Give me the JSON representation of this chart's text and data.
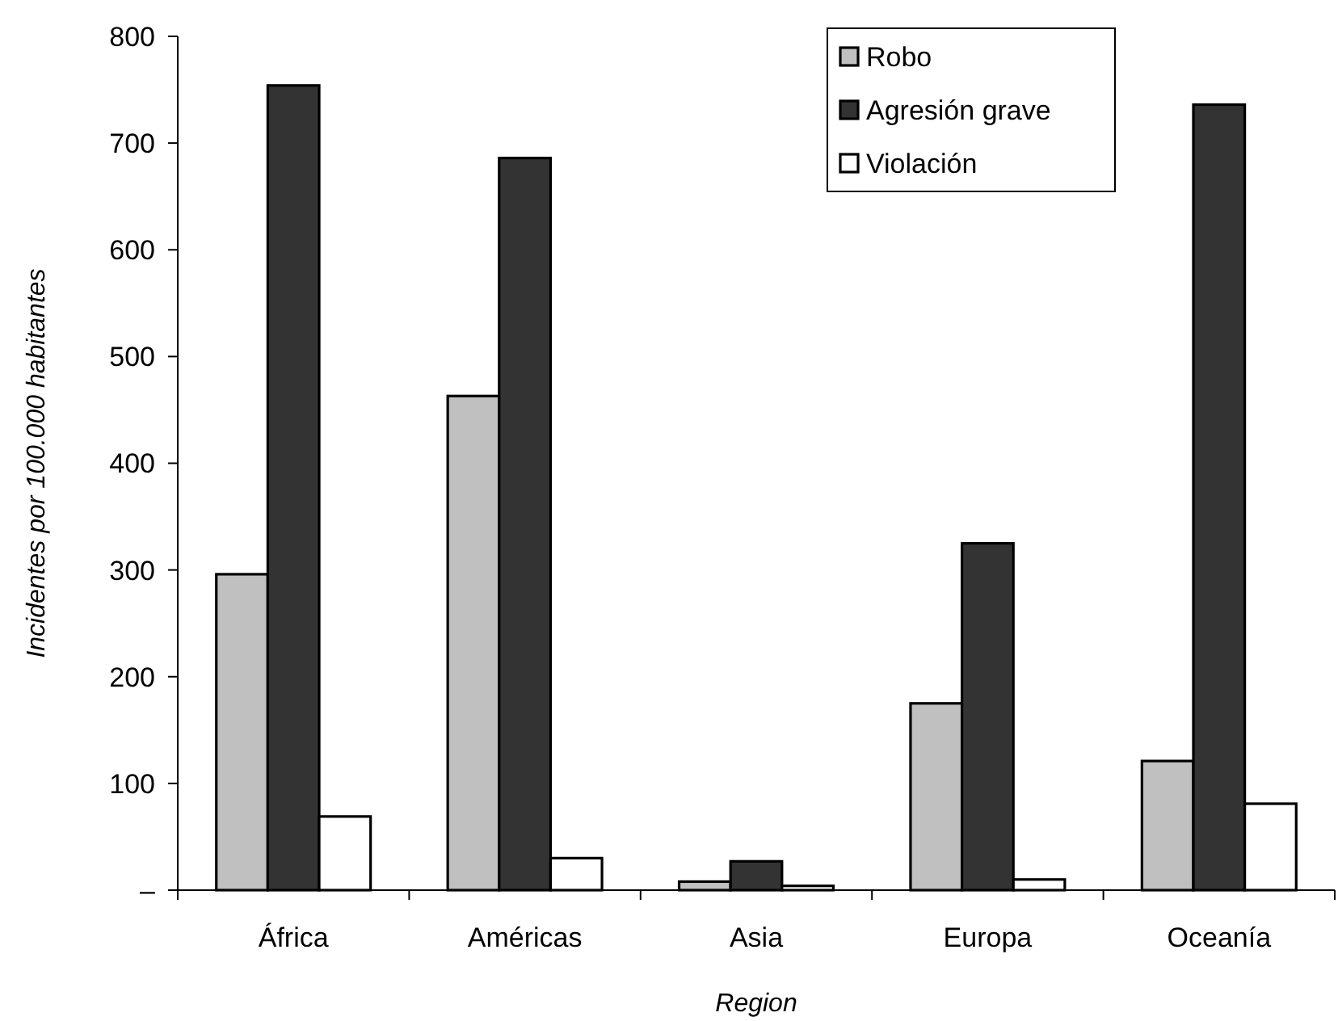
{
  "chart_data": {
    "type": "bar",
    "xlabel": "Region",
    "ylabel": "Incidentes por 100.000 habitantes",
    "categories": [
      "África",
      "Américas",
      "Asia",
      "Europa",
      "Oceanía"
    ],
    "series": [
      {
        "name": "Robo",
        "color": "#c0c0c0",
        "values": [
          296,
          463,
          8,
          175,
          121
        ]
      },
      {
        "name": "Agresión grave",
        "color": "#333333",
        "values": [
          754,
          686,
          27,
          325,
          736
        ]
      },
      {
        "name": "Violación",
        "color": "#ffffff",
        "values": [
          69,
          30,
          4,
          10,
          81
        ]
      }
    ],
    "ylim": [
      0,
      800
    ],
    "yticks": [
      {
        "value": 0,
        "label": "–"
      },
      100,
      200,
      300,
      400,
      500,
      600,
      700,
      800
    ],
    "legend": "top right"
  }
}
